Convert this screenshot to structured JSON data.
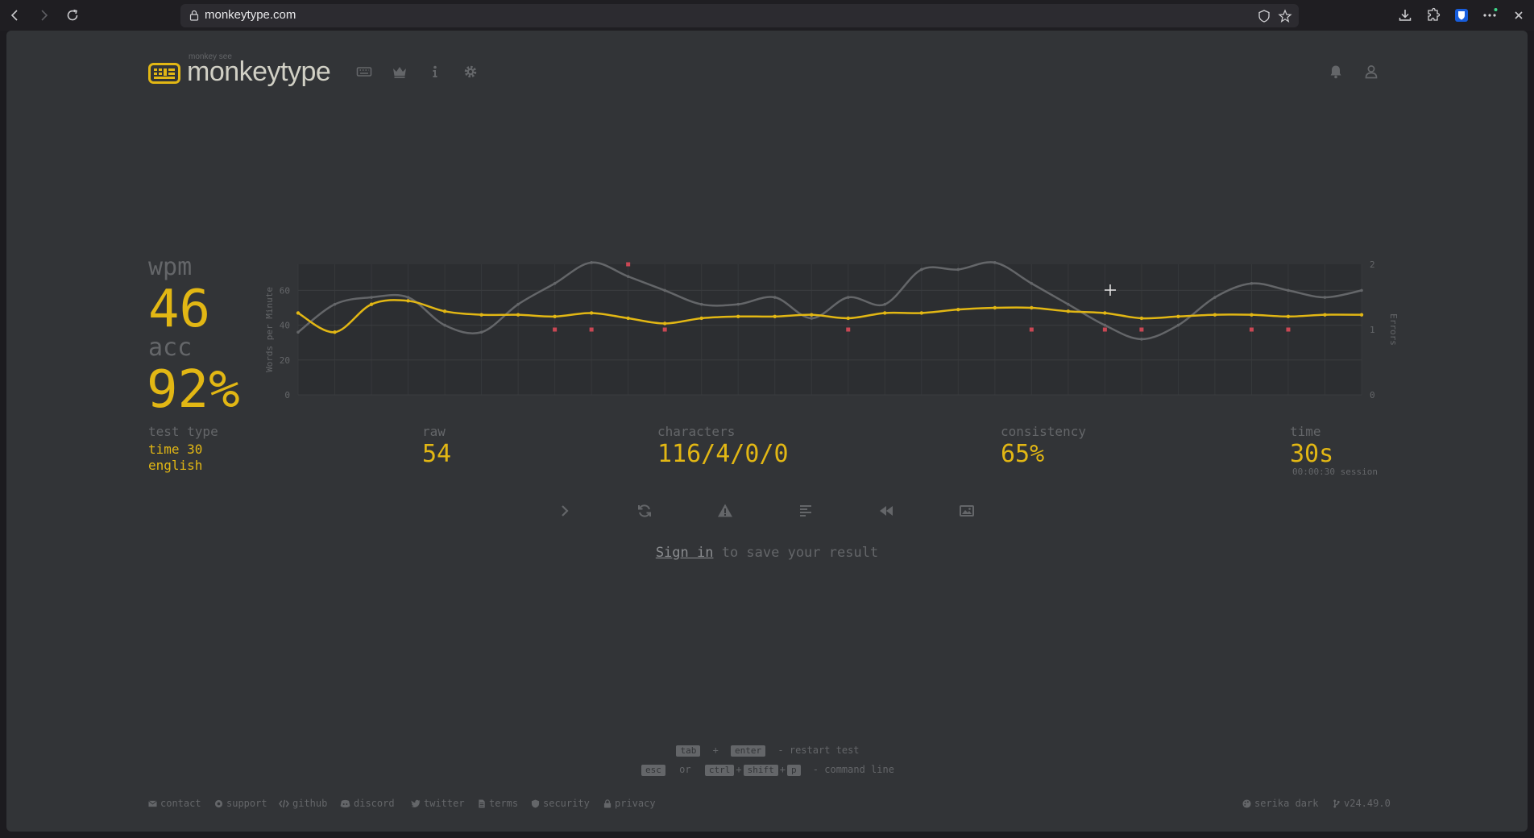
{
  "browser": {
    "url": "monkeytype.com"
  },
  "header": {
    "logo_top": "monkey see",
    "logo_text": "monkeytype",
    "nav_icons": [
      "keyboard-icon",
      "crown-icon",
      "info-icon",
      "gear-icon"
    ],
    "right_icons": [
      "bell-icon",
      "user-icon"
    ]
  },
  "stats": {
    "wpm_label": "wpm",
    "wpm_value": "46",
    "acc_label": "acc",
    "acc_value": "92%",
    "test_type_label": "test type",
    "test_type_line1": "time 30",
    "test_type_line2": "english",
    "raw_label": "raw",
    "raw_value": "54",
    "characters_label": "characters",
    "characters_value": "116/4/0/0",
    "consistency_label": "consistency",
    "consistency_value": "65%",
    "time_label": "time",
    "time_value": "30s",
    "session_value": "00:00:30 session"
  },
  "chart_data": {
    "type": "line",
    "ylabel": "Words per Minute",
    "ylabel_right": "Errors",
    "y_ticks": [
      "0",
      "20",
      "40",
      "60"
    ],
    "y_right_ticks": [
      "0",
      "1",
      "2"
    ],
    "ylim": [
      0,
      75
    ],
    "y_right_lim": [
      0,
      2
    ],
    "x": [
      1,
      2,
      3,
      4,
      5,
      6,
      7,
      8,
      9,
      10,
      11,
      12,
      13,
      14,
      15,
      16,
      17,
      18,
      19,
      20,
      21,
      22,
      23,
      24,
      25,
      26,
      27,
      28,
      29,
      30
    ],
    "series": [
      {
        "color": "#e2b714",
        "values": [
          47,
          36,
          52,
          54,
          48,
          46,
          46,
          45,
          47,
          44,
          41,
          44,
          45,
          45,
          46,
          44,
          47,
          47,
          49,
          50,
          50,
          48,
          47,
          44,
          45,
          46,
          46,
          45,
          46,
          46
        ]
      },
      {
        "color": "#646669",
        "values": [
          36,
          52,
          56,
          56,
          40,
          36,
          52,
          64,
          76,
          68,
          60,
          52,
          52,
          56,
          44,
          56,
          52,
          72,
          72,
          76,
          64,
          52,
          40,
          32,
          40,
          56,
          64,
          60,
          56,
          60
        ]
      },
      {
        "color": "#ca4754",
        "type": "scatter",
        "x": [
          8,
          9,
          10,
          11,
          16,
          21,
          23,
          24,
          27,
          28
        ],
        "values": [
          1,
          1,
          2,
          1,
          1,
          1,
          1,
          1,
          1,
          1
        ]
      }
    ],
    "grid": true
  },
  "actions": {
    "icons": [
      "next-test-icon",
      "restart-icon",
      "warning-icon",
      "words-history-icon",
      "replay-icon",
      "screenshot-icon"
    ]
  },
  "signin": {
    "link": "Sign in",
    "rest": " to save your result"
  },
  "hints": {
    "line1_key1": "tab",
    "line1_plus": "+",
    "line1_key2": "enter",
    "line1_text": "- restart test",
    "line2_key1": "esc",
    "line2_or": "or",
    "line2_key2": "ctrl",
    "line2_plus1": "+",
    "line2_key3": "shift",
    "line2_plus2": "+",
    "line2_key4": "p",
    "line2_text": "- command line"
  },
  "footer": {
    "links": [
      "contact",
      "support",
      "github",
      "discord",
      "twitter",
      "terms",
      "security",
      "privacy"
    ],
    "theme": "serika dark",
    "version": "v24.49.0"
  }
}
